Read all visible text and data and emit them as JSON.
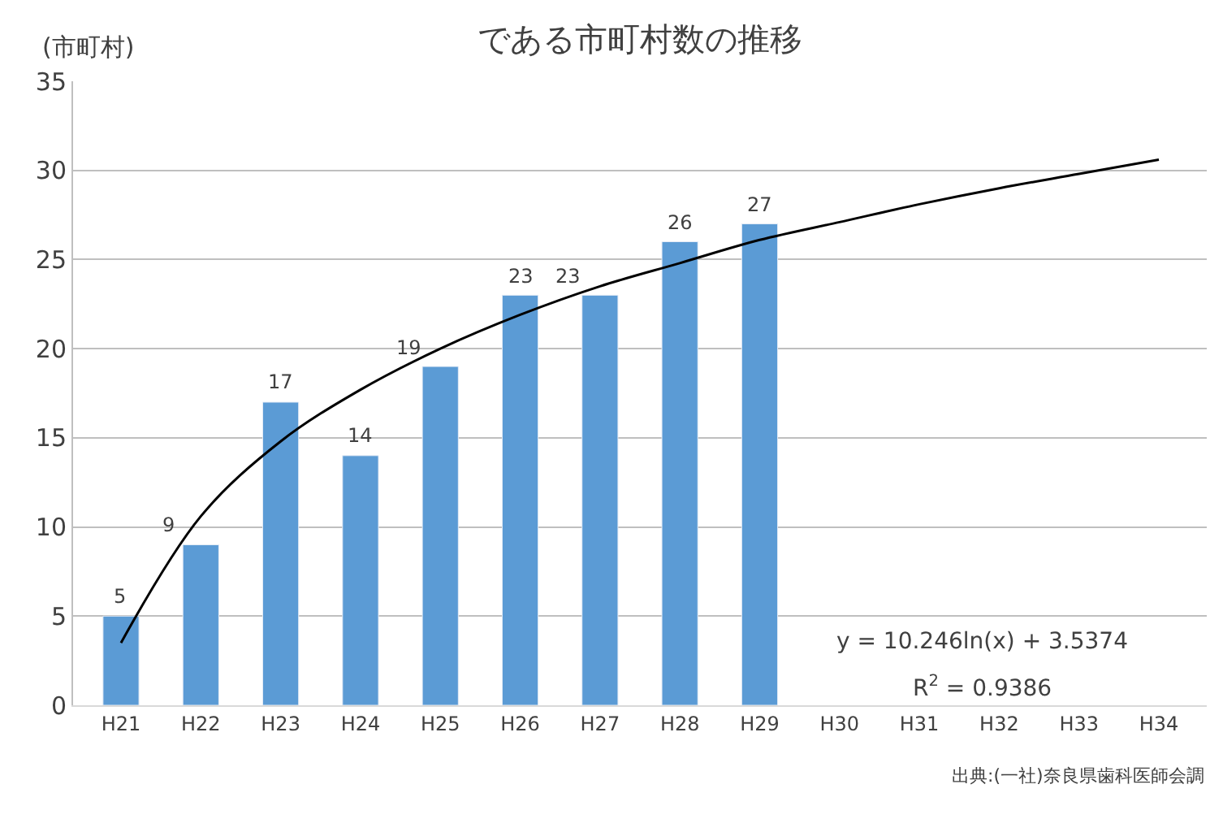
{
  "chart_data": {
    "type": "bar",
    "title": "である市町村数の推移",
    "ylabel": "(市町村)",
    "categories": [
      "H21",
      "H22",
      "H23",
      "H24",
      "H25",
      "H26",
      "H27",
      "H28",
      "H29",
      "H30",
      "H31",
      "H32",
      "H33",
      "H34"
    ],
    "series": [
      {
        "color": "#5b9bd5",
        "values": [
          5,
          9,
          17,
          14,
          19,
          23,
          23,
          26,
          27,
          null,
          null,
          null,
          null,
          null
        ],
        "value_labels": [
          "5",
          "9",
          "17",
          "14",
          "19",
          "23",
          "23",
          "26",
          "27",
          null,
          null,
          null,
          null,
          null
        ]
      },
      {
        "type": "line",
        "color": "#000000",
        "values": [
          3.5,
          10.6,
          14.8,
          17.7,
          20.0,
          21.9,
          23.5,
          24.8,
          26.1,
          27.1,
          28.1,
          29.0,
          29.8,
          30.6
        ]
      }
    ],
    "ylim": [
      0,
      35
    ],
    "yticks": [
      0,
      5,
      10,
      15,
      20,
      25,
      30,
      35
    ],
    "grid": "y",
    "legend": false,
    "marker": "none",
    "annotations": [
      "y = 10.246ln(x) + 3.5374",
      "R$^{2}$ = 0.9386",
      "出典:(一社)奈良県歯科医師会調"
    ]
  }
}
